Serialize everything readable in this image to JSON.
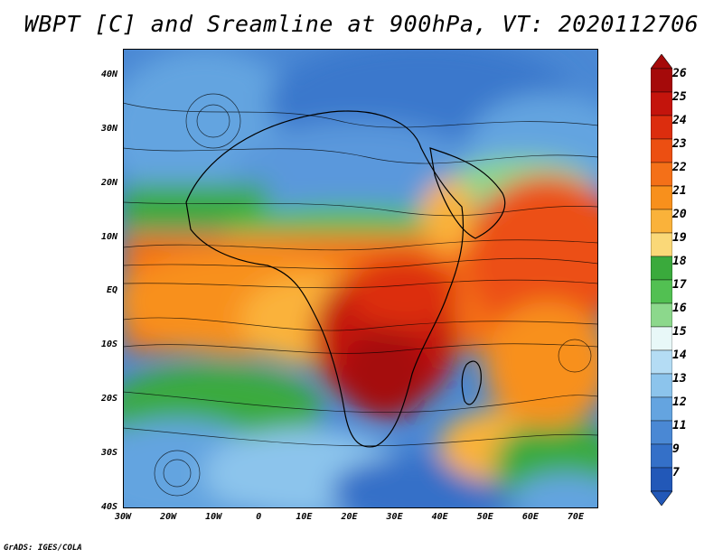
{
  "title": "WBPT [C] and Sreamline at 900hPa, VT: 2020112706",
  "credit": "GrADS: IGES/COLA",
  "map": {
    "lat_ticks": [
      "40N",
      "30N",
      "20N",
      "10N",
      "EQ",
      "10S",
      "20S",
      "30S",
      "40S"
    ],
    "lon_ticks": [
      "30W",
      "20W",
      "10W",
      "0",
      "10E",
      "20E",
      "30E",
      "40E",
      "50E",
      "60E",
      "70E"
    ],
    "lat_range": [
      -40,
      45
    ],
    "lon_range": [
      -30,
      75
    ]
  },
  "colorbar": {
    "labels": [
      "26",
      "25",
      "24",
      "23",
      "22",
      "21",
      "20",
      "19",
      "18",
      "17",
      "16",
      "15",
      "14",
      "13",
      "12",
      "11",
      "9",
      "7"
    ],
    "colors": [
      "#a50a0a",
      "#c4140c",
      "#dc2d0e",
      "#ec4f12",
      "#f47018",
      "#f8901c",
      "#fab23a",
      "#fad878",
      "#3aaa3c",
      "#52c052",
      "#8cd88c",
      "#e8f8f8",
      "#b4dcf4",
      "#8cc4ec",
      "#64a4e0",
      "#4a88d4",
      "#3470c8",
      "#2258b8"
    ]
  }
}
